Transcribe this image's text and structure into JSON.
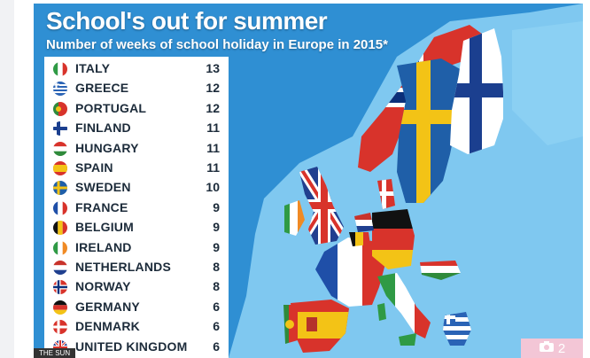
{
  "header": {
    "title": "School's out for summer",
    "subtitle": "Number of weeks of school holiday in Europe in 2015*"
  },
  "table": {
    "rows": [
      {
        "country": "ITALY",
        "weeks": "13"
      },
      {
        "country": "GREECE",
        "weeks": "12"
      },
      {
        "country": "PORTUGAL",
        "weeks": "12"
      },
      {
        "country": "FINLAND",
        "weeks": "11"
      },
      {
        "country": "HUNGARY",
        "weeks": "11"
      },
      {
        "country": "SPAIN",
        "weeks": "11"
      },
      {
        "country": "SWEDEN",
        "weeks": "10"
      },
      {
        "country": "FRANCE",
        "weeks": "9"
      },
      {
        "country": "BELGIUM",
        "weeks": "9"
      },
      {
        "country": "IRELAND",
        "weeks": "9"
      },
      {
        "country": "NETHERLANDS",
        "weeks": "8"
      },
      {
        "country": "NORWAY",
        "weeks": "8"
      },
      {
        "country": "GERMANY",
        "weeks": "6"
      },
      {
        "country": "DENMARK",
        "weeks": "6"
      },
      {
        "country": "UNITED KINGDOM",
        "weeks": "6"
      }
    ]
  },
  "footer": {
    "watermark": "THE SUN",
    "photo_count": "2"
  },
  "icons": {
    "photo": "camera-icon"
  },
  "colors": {
    "sea": "#2f8fd3",
    "land": "#7fc8f0",
    "text": "#1c2b3a"
  }
}
